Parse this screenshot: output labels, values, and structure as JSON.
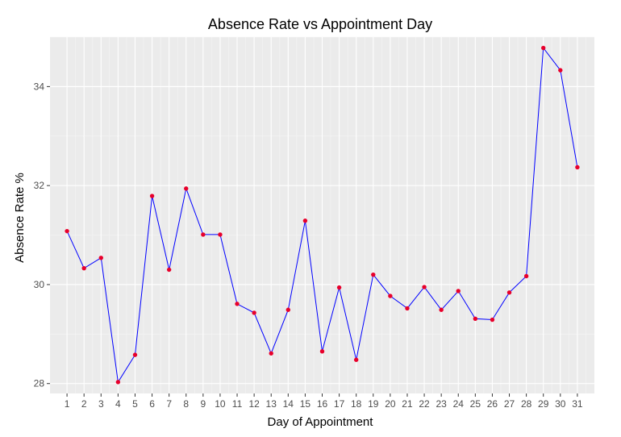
{
  "chart_data": {
    "type": "line",
    "title": "Absence Rate vs Appointment Day",
    "xlabel": "Day of Appointment",
    "ylabel": "Absence Rate %",
    "x": [
      1,
      2,
      3,
      4,
      5,
      6,
      7,
      8,
      9,
      10,
      11,
      12,
      13,
      14,
      15,
      16,
      17,
      18,
      19,
      20,
      21,
      22,
      23,
      24,
      25,
      26,
      27,
      28,
      29,
      30,
      31
    ],
    "values": [
      31.08,
      30.33,
      30.54,
      28.03,
      28.58,
      31.79,
      30.3,
      31.94,
      31.01,
      31.01,
      29.61,
      29.43,
      28.61,
      29.49,
      31.29,
      28.65,
      29.94,
      28.48,
      30.2,
      29.77,
      29.52,
      29.95,
      29.49,
      29.87,
      29.31,
      29.29,
      29.84,
      30.17,
      34.78,
      34.33,
      32.37
    ],
    "ylim": [
      27.8,
      35.0
    ],
    "yticks": [
      28,
      30,
      32,
      34
    ],
    "grid": true,
    "legend": "none",
    "line_color": "#0000ff",
    "point_color": "#e8002b",
    "panel_background": "#ebebeb"
  }
}
